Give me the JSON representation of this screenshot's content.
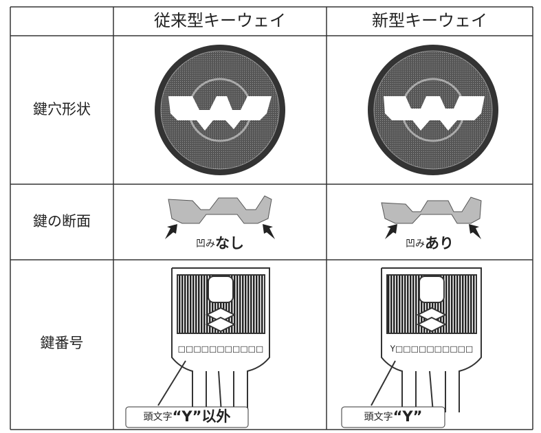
{
  "table": {
    "columns": [
      "従来型キーウェイ",
      "新型キーウェイ"
    ],
    "rows": [
      {
        "label": "鍵穴形状"
      },
      {
        "label": "鍵の断面",
        "cells": [
          {
            "prefix": "凹み",
            "emphasis": "なし"
          },
          {
            "prefix": "凹み",
            "emphasis": "あり"
          }
        ]
      },
      {
        "label": "鍵番号",
        "cells": [
          {
            "number": "□□□□□□□□□□□",
            "callout_prefix": "頭文字",
            "callout_emphasis": "“Y”以外"
          },
          {
            "number": "Y□□□□□□□□□□",
            "callout_prefix": "頭文字",
            "callout_emphasis": "“Y”"
          }
        ]
      }
    ]
  }
}
